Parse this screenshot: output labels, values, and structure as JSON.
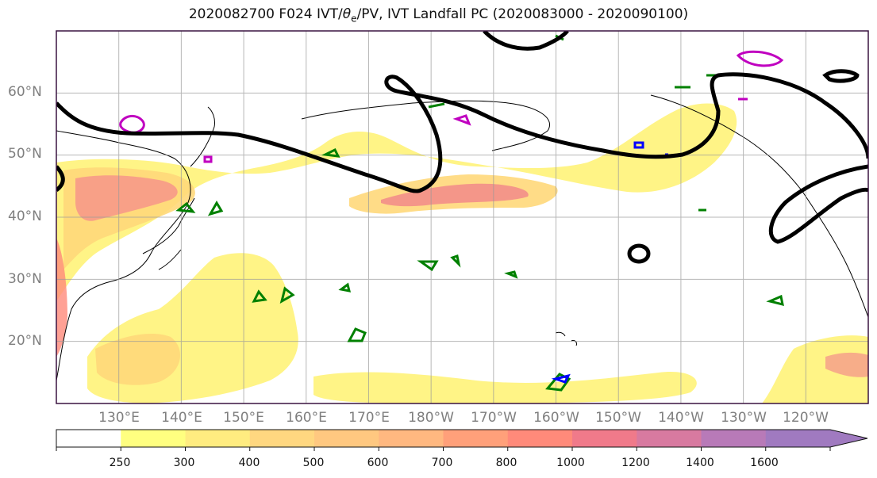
{
  "title": {
    "prefix": "2020082700 F024 IVT/",
    "theta_symbol": "θ",
    "theta_sub": "e",
    "suffix": "/PV, IVT Landfall PC (2020083000 - 2020090100)"
  },
  "map": {
    "extent_lon": [
      120,
      250
    ],
    "extent_lat": [
      10,
      70
    ],
    "lat_ticks": [
      {
        "label": "60°N"
      },
      {
        "label": "50°N"
      },
      {
        "label": "40°N"
      },
      {
        "label": "30°N"
      },
      {
        "label": "20°N"
      }
    ],
    "lon_ticks": [
      {
        "label": "130°E"
      },
      {
        "label": "140°E"
      },
      {
        "label": "150°E"
      },
      {
        "label": "160°E"
      },
      {
        "label": "170°E"
      },
      {
        "label": "180°W"
      },
      {
        "label": "170°W"
      },
      {
        "label": "160°W"
      },
      {
        "label": "150°W"
      },
      {
        "label": "140°W"
      },
      {
        "label": "130°W"
      },
      {
        "label": "120°W"
      }
    ],
    "grid": true,
    "ivt_landfall_contour_color": "#000000",
    "theta_e_contour_color": "#008000",
    "pv_contour_colors": [
      "#0000ff",
      "#c000c0"
    ]
  },
  "colorbar": {
    "levels": [
      "250",
      "300",
      "400",
      "500",
      "600",
      "700",
      "800",
      "1000",
      "1200",
      "1400",
      "1600"
    ],
    "colors": [
      "#ffffff",
      "#ffff80",
      "#ffec80",
      "#ffd780",
      "#ffc880",
      "#ffb880",
      "#ffa07a",
      "#ff8a7a",
      "#f07a8a",
      "#d87aa0",
      "#b87ab8",
      "#a07ac0"
    ]
  }
}
